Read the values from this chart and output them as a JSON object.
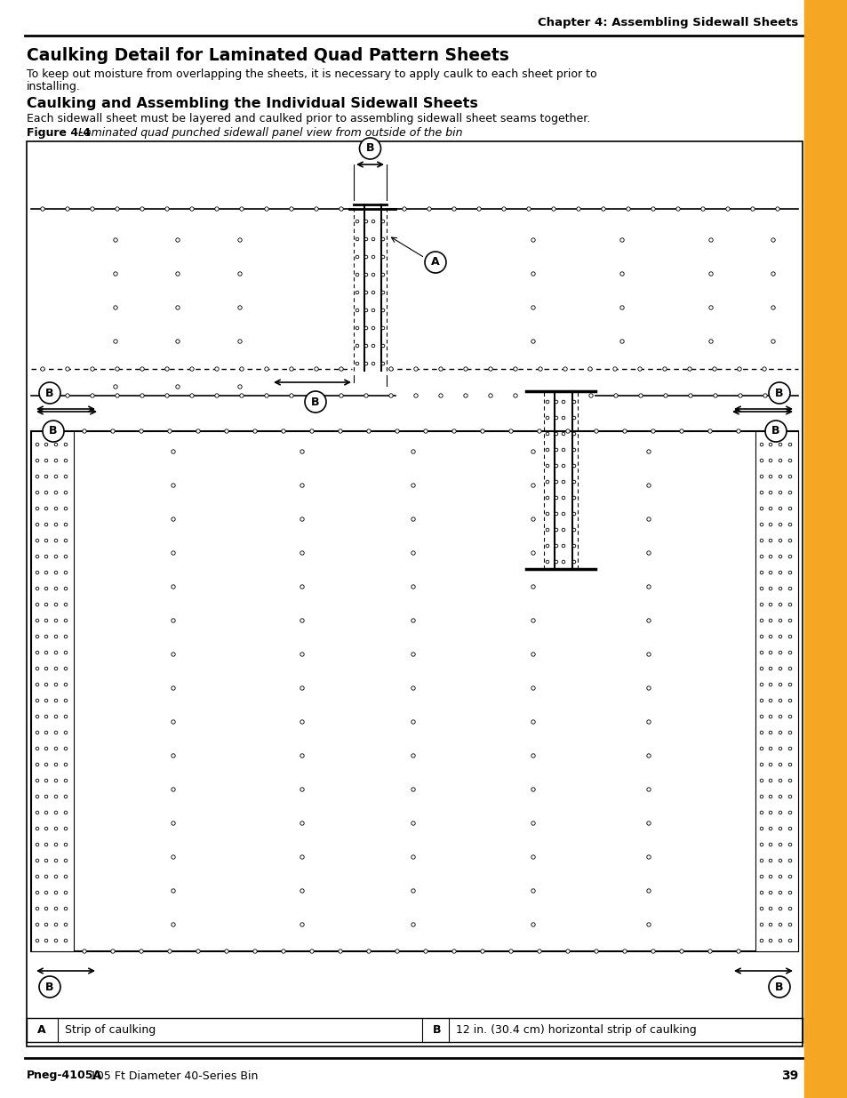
{
  "page_title": "Chapter 4: Assembling Sidewall Sheets",
  "main_title": "Caulking Detail for Laminated Quad Pattern Sheets",
  "para1_line1": "To keep out moisture from overlapping the sheets, it is necessary to apply caulk to each sheet prior to",
  "para1_line2": "installing.",
  "sub_title": "Caulking and Assembling the Individual Sidewall Sheets",
  "para2": "Each sidewall sheet must be layered and caulked prior to assembling sidewall sheet seams together.",
  "fig_label": "Figure 4-4",
  "fig_caption": " Laminated quad punched sidewall panel view from outside of the bin",
  "footer_bold": "Pneg-4105A",
  "footer_text": " 105 Ft Diameter 40-Series Bin",
  "page_num": "39",
  "accent_color": "#F5A623",
  "legend_A": "Strip of caulking",
  "legend_B": "12 in. (30.4 cm) horizontal strip of caulking",
  "bg_color": "#ffffff"
}
